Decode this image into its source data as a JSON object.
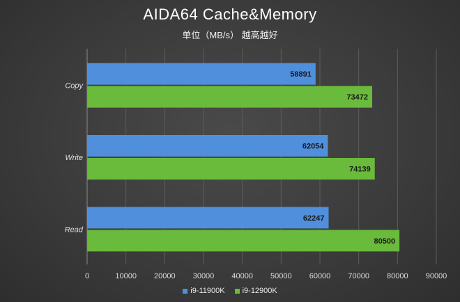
{
  "chart_data": {
    "type": "bar",
    "orientation": "horizontal",
    "title": "AIDA64 Cache&Memory",
    "subtitle": "单位（MB/s） 越高越好",
    "categories": [
      "Copy",
      "Write",
      "Read"
    ],
    "series": [
      {
        "name": "i9-11900K",
        "color": "#4f8fdc",
        "values": [
          58891,
          62054,
          62247
        ]
      },
      {
        "name": "i9-12900K",
        "color": "#6aba3c",
        "values": [
          73472,
          74139,
          80500
        ]
      }
    ],
    "xlim": [
      0,
      90000
    ],
    "xticks": [
      0,
      10000,
      20000,
      30000,
      40000,
      50000,
      60000,
      70000,
      80000,
      90000
    ],
    "grid": "vertical",
    "legend_position": "bottom"
  }
}
